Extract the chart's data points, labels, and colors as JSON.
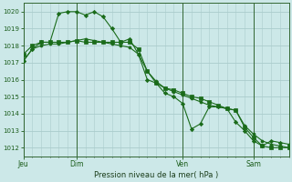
{
  "background_color": "#cce8e8",
  "grid_color": "#aacccc",
  "line_color": "#1a6b1a",
  "marker_color": "#1a6b1a",
  "title": "Pression niveau de la mer( hPa )",
  "ylim": [
    1011.5,
    1020.5
  ],
  "yticks": [
    1012,
    1013,
    1014,
    1015,
    1016,
    1017,
    1018,
    1019,
    1020
  ],
  "x_tick_labels": [
    "Jeu",
    "Dim",
    "Ven",
    "Sam"
  ],
  "x_tick_positions": [
    0,
    6,
    18,
    26
  ],
  "series": [
    {
      "x": [
        0,
        1,
        2,
        3,
        4,
        5,
        6,
        7,
        8,
        9,
        10,
        11,
        12,
        13,
        14,
        15,
        16,
        17,
        18,
        19,
        20,
        21,
        22,
        23,
        24,
        25,
        26,
        27,
        28,
        29,
        30
      ],
      "y": [
        1017.1,
        1017.8,
        1018.2,
        1018.2,
        1019.9,
        1020.0,
        1020.0,
        1019.8,
        1020.0,
        1019.7,
        1019.0,
        1018.2,
        1018.4,
        1017.5,
        1016.0,
        1015.8,
        1015.2,
        1015.0,
        1014.6,
        1013.1,
        1013.4,
        1014.4,
        1014.4,
        1014.3,
        1013.5,
        1013.0,
        1012.4,
        1012.1,
        1012.4,
        1012.3,
        1012.2
      ]
    },
    {
      "x": [
        0,
        1,
        2,
        3,
        4,
        5,
        6,
        7,
        8,
        9,
        10,
        11,
        12,
        13,
        14,
        15,
        16,
        17,
        18,
        19,
        20,
        21,
        22,
        23,
        24,
        25,
        26,
        27,
        28,
        29,
        30
      ],
      "y": [
        1017.5,
        1018.0,
        1018.2,
        1018.2,
        1018.2,
        1018.2,
        1018.3,
        1018.2,
        1018.2,
        1018.2,
        1018.2,
        1018.2,
        1018.2,
        1017.8,
        1016.5,
        1015.8,
        1015.5,
        1015.4,
        1015.2,
        1015.0,
        1014.9,
        1014.7,
        1014.5,
        1014.3,
        1014.2,
        1013.2,
        1012.6,
        1012.1,
        1012.0,
        1012.0,
        1012.0
      ]
    },
    {
      "x": [
        0,
        1,
        2,
        3,
        4,
        5,
        6,
        7,
        8,
        9,
        10,
        11,
        12,
        13,
        14,
        15,
        16,
        17,
        18,
        19,
        20,
        21,
        22,
        23,
        24,
        25,
        26,
        27,
        28,
        29,
        30
      ],
      "y": [
        1017.1,
        1017.8,
        1018.0,
        1018.1,
        1018.1,
        1018.2,
        1018.3,
        1018.4,
        1018.3,
        1018.2,
        1018.1,
        1018.0,
        1017.9,
        1017.5,
        1016.5,
        1015.9,
        1015.5,
        1015.3,
        1015.1,
        1014.9,
        1014.7,
        1014.5,
        1014.4,
        1014.3,
        1014.2,
        1013.3,
        1012.8,
        1012.4,
        1012.2,
        1012.1,
        1012.0
      ]
    }
  ],
  "xlim": [
    0,
    30
  ],
  "vlines": [
    0,
    6,
    18,
    26
  ]
}
